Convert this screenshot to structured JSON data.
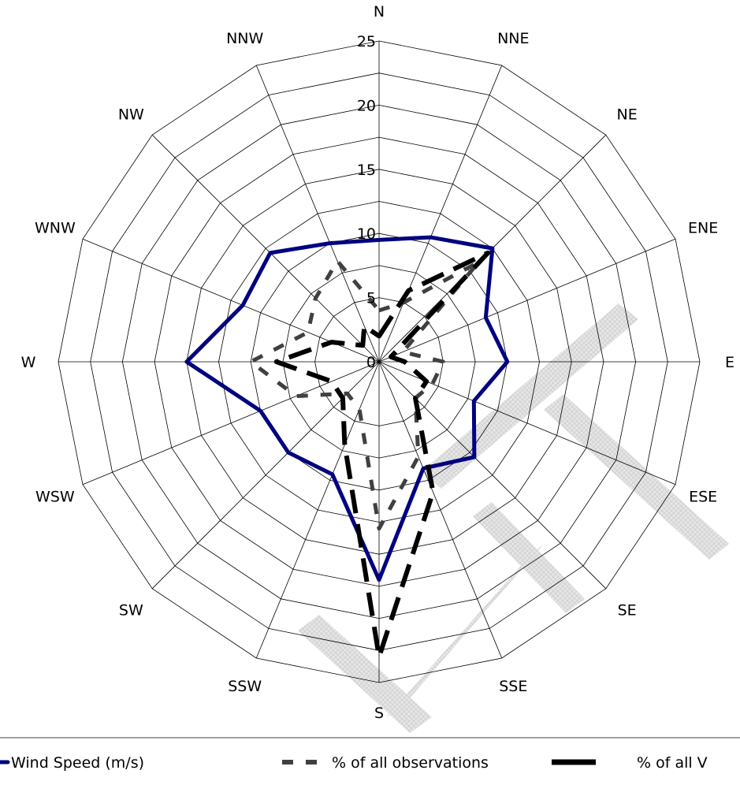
{
  "chart_data": {
    "type": "radar",
    "directions": [
      "N",
      "NNE",
      "NE",
      "ENE",
      "E",
      "ESE",
      "SE",
      "SSE",
      "S",
      "SSW",
      "SW",
      "WSW",
      "W",
      "WNW",
      "NW",
      "NNW"
    ],
    "rlim": [
      0,
      25
    ],
    "ticks": [
      "0",
      "5",
      "10",
      "15",
      "20",
      "25"
    ],
    "grid": true,
    "legend_position": "bottom",
    "series": [
      {
        "name": "Wind Speed (m/s)",
        "style": "solid",
        "color": "#000080",
        "values": [
          9.5,
          10.5,
          12.5,
          9.0,
          10.0,
          8.0,
          10.5,
          9.0,
          17.0,
          9.5,
          10.0,
          10.0,
          15.0,
          11.5,
          12.0,
          10.0
        ]
      },
      {
        "name": "% of all observations",
        "style": "dashed",
        "color": "#404040",
        "values": [
          4.0,
          5.0,
          11.0,
          2.0,
          5.0,
          4.5,
          4.0,
          8.0,
          13.0,
          4.0,
          3.5,
          7.0,
          10.0,
          6.0,
          7.0,
          8.5
        ]
      },
      {
        "name": "% of all V",
        "style": "dashed",
        "color": "#000000",
        "values": [
          2.0,
          6.0,
          12.0,
          1.0,
          2.0,
          4.0,
          4.0,
          11.0,
          23.0,
          7.0,
          4.0,
          4.0,
          8.0,
          4.0,
          1.8,
          3.0
        ]
      }
    ]
  }
}
